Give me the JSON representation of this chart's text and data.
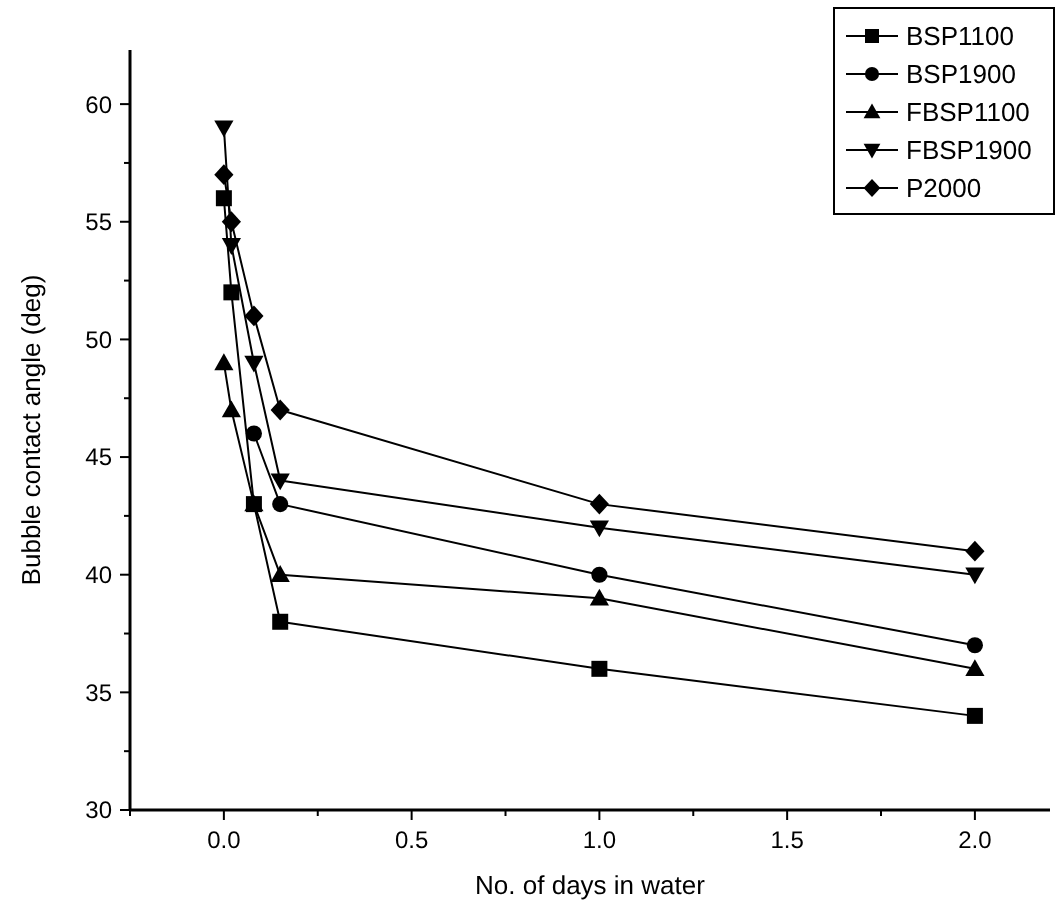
{
  "chart_data": {
    "type": "line",
    "xlabel": "No. of days in water",
    "ylabel": "Bubble contact angle (deg)",
    "x": [
      0,
      0.02,
      0.08,
      0.15,
      1,
      2
    ],
    "xlim": [
      -0.25,
      2.2
    ],
    "ylim": [
      30,
      62.3
    ],
    "xticks": [
      {
        "value": -0.25,
        "label": null
      },
      {
        "value": 0,
        "label": "0.0"
      },
      {
        "value": 0.25,
        "label": null
      },
      {
        "value": 0.5,
        "label": "0.5"
      },
      {
        "value": 0.75,
        "label": null
      },
      {
        "value": 1,
        "label": "1.0"
      },
      {
        "value": 1.25,
        "label": null
      },
      {
        "value": 1.5,
        "label": "1.5"
      },
      {
        "value": 1.75,
        "label": null
      },
      {
        "value": 2,
        "label": "2.0"
      }
    ],
    "yticks": [
      30,
      {
        "value": 32.5,
        "label": null
      },
      35,
      {
        "value": 37.5,
        "label": null
      },
      40,
      {
        "value": 42.5,
        "label": null
      },
      45,
      {
        "value": 47.5,
        "label": null
      },
      50,
      {
        "value": 52.5,
        "label": null
      },
      55,
      {
        "value": 57.5,
        "label": null
      },
      60
    ],
    "grid": false,
    "legend": "top right",
    "line_style": "solid",
    "series": [
      {
        "name": "BSP1100",
        "color": "#000000",
        "marker": "square",
        "values": [
          56,
          52,
          43,
          38,
          36,
          34
        ]
      },
      {
        "name": "BSP1900",
        "color": "#000000",
        "marker": "circle",
        "values": [
          null,
          null,
          46,
          43,
          40,
          37
        ]
      },
      {
        "name": "FBSP1100",
        "color": "#000000",
        "marker": "triangle",
        "values": [
          49,
          47,
          43,
          40,
          39,
          36
        ]
      },
      {
        "name": "FBSP1900",
        "color": "#000000",
        "marker": "triangle-down",
        "values": [
          59,
          54,
          49,
          44,
          42,
          40
        ]
      },
      {
        "name": "P2000",
        "color": "#000000",
        "marker": "diamond",
        "values": [
          57,
          55,
          51,
          47,
          43,
          41
        ]
      }
    ]
  }
}
